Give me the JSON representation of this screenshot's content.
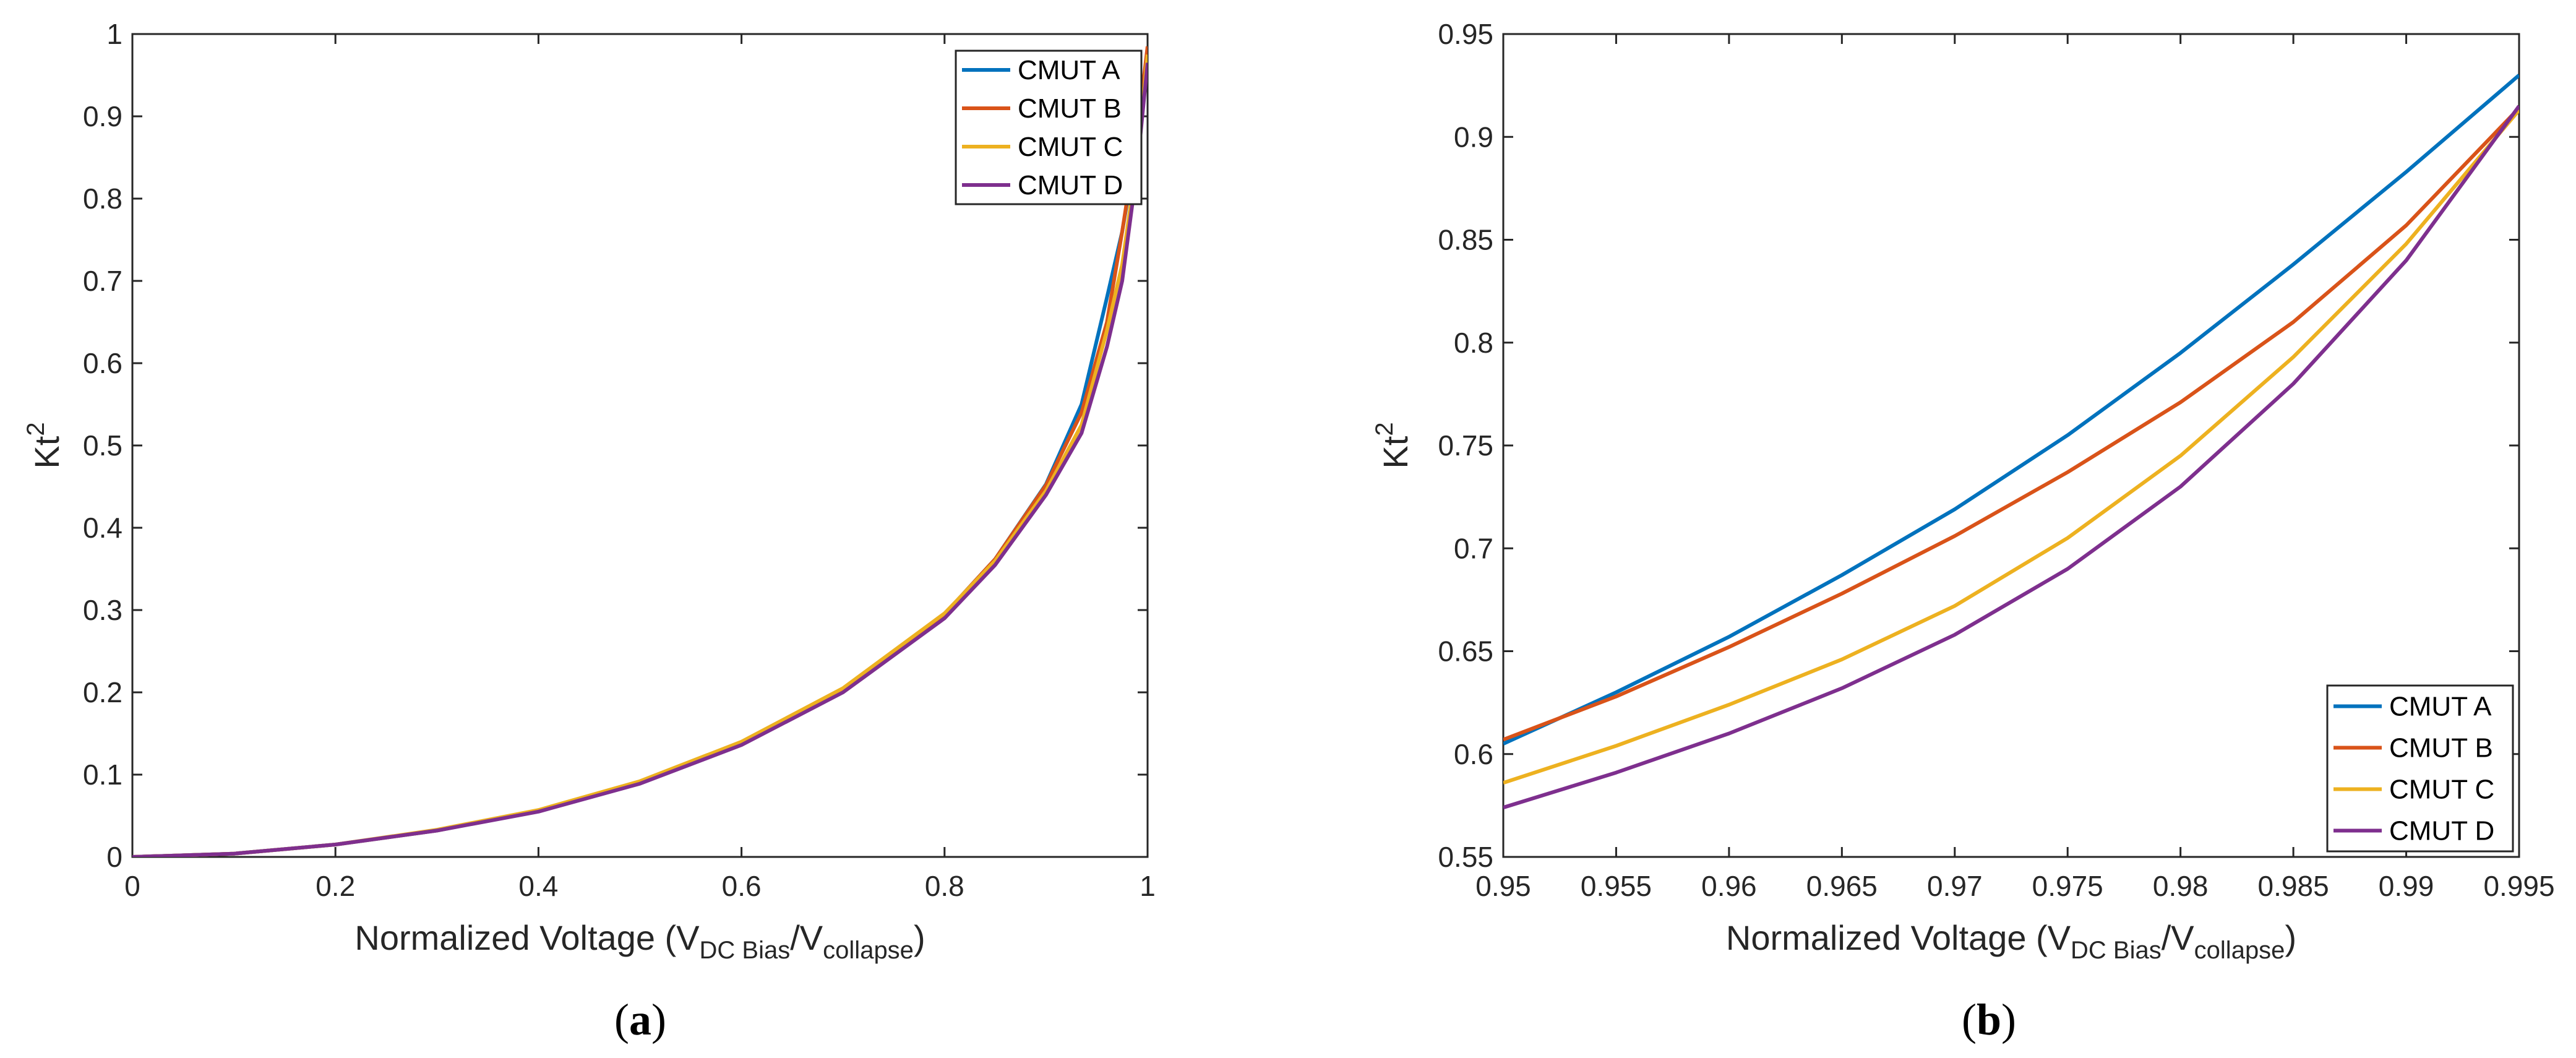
{
  "chart_data": [
    {
      "type": "line",
      "panel": "a",
      "caption": "(a)",
      "caption_letter": "a",
      "xlabel": "Normalized Voltage (V",
      "xlabel_sub1": "DC Bias",
      "xlabel_mid": "/V",
      "xlabel_sub2": "collapse",
      "xlabel_end": ")",
      "ylabel": "Kt",
      "ylabel_sup": "2",
      "xlim": [
        0,
        1
      ],
      "ylim": [
        0,
        1
      ],
      "xticks": [
        0,
        0.2,
        0.4,
        0.6,
        0.8,
        1
      ],
      "xticklabels": [
        "0",
        "0.2",
        "0.4",
        "0.6",
        "0.8",
        "1"
      ],
      "yticks": [
        0,
        0.1,
        0.2,
        0.3,
        0.4,
        0.5,
        0.6,
        0.7,
        0.8,
        0.9,
        1
      ],
      "yticklabels": [
        "0",
        "0.1",
        "0.2",
        "0.3",
        "0.4",
        "0.5",
        "0.6",
        "0.7",
        "0.8",
        "0.9",
        "1"
      ],
      "legend_position": "top-right",
      "series": [
        {
          "name": "CMUT A",
          "color": "#0072BD",
          "x": [
            0,
            0.1,
            0.2,
            0.3,
            0.4,
            0.5,
            0.6,
            0.7,
            0.8,
            0.85,
            0.9,
            0.935,
            0.96,
            0.975,
            0.99,
            1.0
          ],
          "y": [
            0,
            0.004,
            0.015,
            0.032,
            0.056,
            0.09,
            0.138,
            0.203,
            0.295,
            0.362,
            0.453,
            0.55,
            0.68,
            0.76,
            0.87,
            0.97
          ]
        },
        {
          "name": "CMUT B",
          "color": "#D95319",
          "x": [
            0,
            0.1,
            0.2,
            0.3,
            0.4,
            0.5,
            0.6,
            0.7,
            0.8,
            0.85,
            0.9,
            0.935,
            0.96,
            0.975,
            0.99,
            1.0
          ],
          "y": [
            0,
            0.004,
            0.015,
            0.032,
            0.056,
            0.09,
            0.138,
            0.203,
            0.295,
            0.362,
            0.452,
            0.54,
            0.65,
            0.76,
            0.88,
            0.985
          ]
        },
        {
          "name": "CMUT C",
          "color": "#EDB120",
          "x": [
            0,
            0.1,
            0.2,
            0.3,
            0.4,
            0.5,
            0.6,
            0.7,
            0.8,
            0.85,
            0.9,
            0.935,
            0.96,
            0.975,
            0.99,
            1.0
          ],
          "y": [
            0,
            0.004,
            0.015,
            0.033,
            0.057,
            0.092,
            0.14,
            0.205,
            0.296,
            0.36,
            0.445,
            0.525,
            0.64,
            0.72,
            0.85,
            0.975
          ]
        },
        {
          "name": "CMUT D",
          "color": "#7E2F8E",
          "x": [
            0,
            0.1,
            0.2,
            0.3,
            0.4,
            0.5,
            0.6,
            0.7,
            0.8,
            0.85,
            0.9,
            0.935,
            0.96,
            0.975,
            0.99,
            1.0
          ],
          "y": [
            0,
            0.004,
            0.015,
            0.032,
            0.055,
            0.089,
            0.136,
            0.2,
            0.29,
            0.355,
            0.44,
            0.515,
            0.62,
            0.7,
            0.84,
            0.965
          ]
        }
      ]
    },
    {
      "type": "line",
      "panel": "b",
      "caption": "(b)",
      "caption_letter": "b",
      "xlabel": "Normalized Voltage (V",
      "xlabel_sub1": "DC Bias",
      "xlabel_mid": "/V",
      "xlabel_sub2": "collapse",
      "xlabel_end": ")",
      "ylabel": "Kt",
      "ylabel_sup": "2",
      "xlim": [
        0.95,
        0.995
      ],
      "ylim": [
        0.55,
        0.95
      ],
      "xticks": [
        0.95,
        0.955,
        0.96,
        0.965,
        0.97,
        0.975,
        0.98,
        0.985,
        0.99,
        0.995
      ],
      "xticklabels": [
        "0.95",
        "0.955",
        "0.96",
        "0.965",
        "0.97",
        "0.975",
        "0.98",
        "0.985",
        "0.99",
        "0.995"
      ],
      "yticks": [
        0.55,
        0.6,
        0.65,
        0.7,
        0.75,
        0.8,
        0.85,
        0.9,
        0.95
      ],
      "yticklabels": [
        "0.55",
        "0.6",
        "0.65",
        "0.7",
        "0.75",
        "0.8",
        "0.85",
        "0.9",
        "0.95"
      ],
      "legend_position": "bottom-right",
      "series": [
        {
          "name": "CMUT A",
          "color": "#0072BD",
          "x": [
            0.95,
            0.955,
            0.96,
            0.965,
            0.97,
            0.975,
            0.98,
            0.985,
            0.99,
            0.995
          ],
          "y": [
            0.605,
            0.63,
            0.657,
            0.687,
            0.719,
            0.755,
            0.795,
            0.838,
            0.883,
            0.93
          ]
        },
        {
          "name": "CMUT B",
          "color": "#D95319",
          "x": [
            0.95,
            0.955,
            0.96,
            0.965,
            0.97,
            0.975,
            0.98,
            0.985,
            0.99,
            0.995
          ],
          "y": [
            0.607,
            0.628,
            0.652,
            0.678,
            0.706,
            0.737,
            0.771,
            0.81,
            0.857,
            0.914
          ]
        },
        {
          "name": "CMUT C",
          "color": "#EDB120",
          "x": [
            0.95,
            0.955,
            0.96,
            0.965,
            0.97,
            0.975,
            0.98,
            0.985,
            0.99,
            0.995
          ],
          "y": [
            0.586,
            0.604,
            0.624,
            0.646,
            0.672,
            0.705,
            0.745,
            0.793,
            0.848,
            0.913
          ]
        },
        {
          "name": "CMUT D",
          "color": "#7E2F8E",
          "x": [
            0.95,
            0.955,
            0.96,
            0.965,
            0.97,
            0.975,
            0.98,
            0.985,
            0.99,
            0.995
          ],
          "y": [
            0.574,
            0.591,
            0.61,
            0.632,
            0.658,
            0.69,
            0.73,
            0.78,
            0.84,
            0.915
          ]
        }
      ]
    }
  ]
}
